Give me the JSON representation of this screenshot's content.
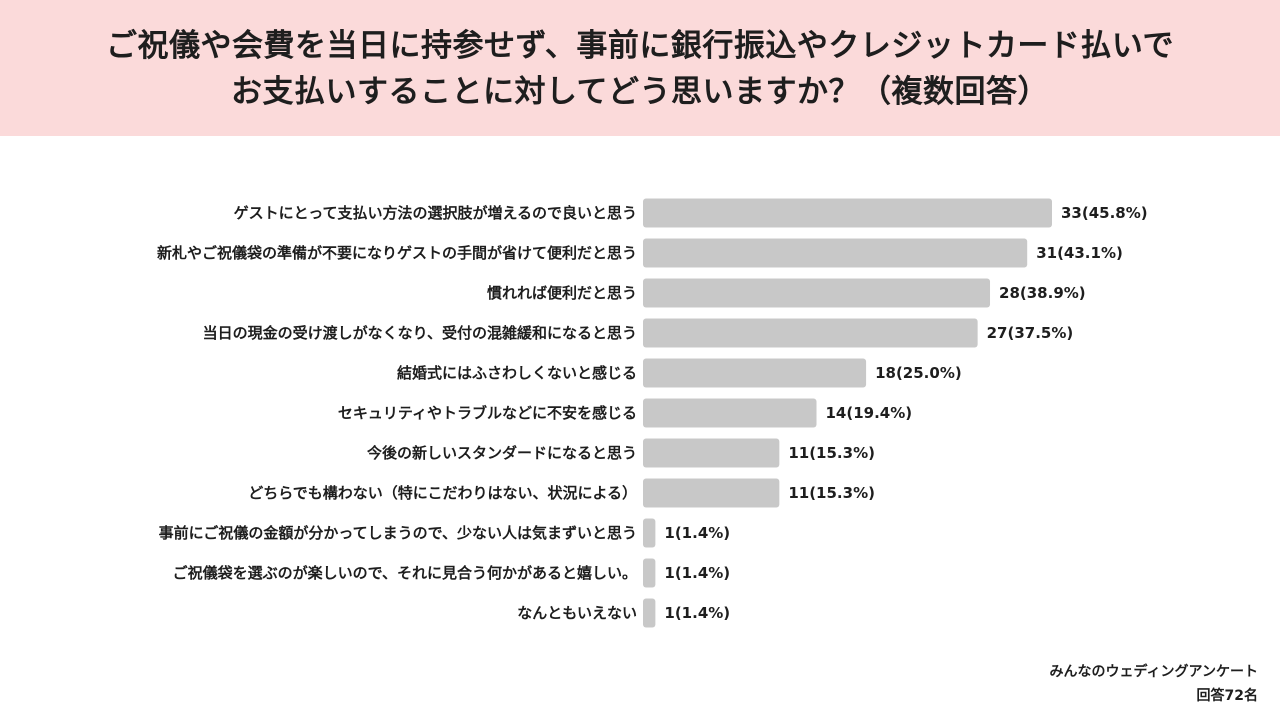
{
  "header": {
    "title_line1": "ご祝儀や会費を当日に持参せず、事前に銀行振込やクレジットカード払いで",
    "title_line2": "お支払いすることに対してどう思いますか？（複数回答）"
  },
  "footer": {
    "source": "みんなのウェディングアンケート",
    "responses": "回答72名"
  },
  "colors": {
    "header_bg": "#fbdada",
    "bar": "#c8c8c8",
    "text": "#1e1e1e"
  },
  "chart_data": {
    "type": "bar",
    "orientation": "horizontal",
    "categories": [
      "ゲストにとって支払い方法の選択肢が増えるので良いと思う",
      "新札やご祝儀袋の準備が不要になりゲストの手間が省けて便利だと思う",
      "慣れれば便利だと思う",
      "当日の現金の受け渡しがなくなり、受付の混雑緩和になると思う",
      "結婚式にはふさわしくないと感じる",
      "セキュリティやトラブルなどに不安を感じる",
      "今後の新しいスタンダードになると思う",
      "どちらでも構わない（特にこだわりはない、状況による）",
      "事前にご祝儀の金額が分かってしまうので、少ない人は気まずいと思う",
      "ご祝儀袋を選ぶのが楽しいので、それに見合う何かがあると嬉しい。",
      "なんともいえない"
    ],
    "values": [
      33,
      31,
      28,
      27,
      18,
      14,
      11,
      11,
      1,
      1,
      1
    ],
    "value_labels": [
      "33(45.8%)",
      "31(43.1%)",
      "28(38.9%)",
      "27(37.5%)",
      "18(25.0%)",
      "14(19.4%)",
      "11(15.3%)",
      "11(15.3%)",
      "1(1.4%)",
      "1(1.4%)",
      "1(1.4%)"
    ],
    "xlim": [
      0,
      33
    ],
    "grid": false,
    "legend": "none"
  }
}
